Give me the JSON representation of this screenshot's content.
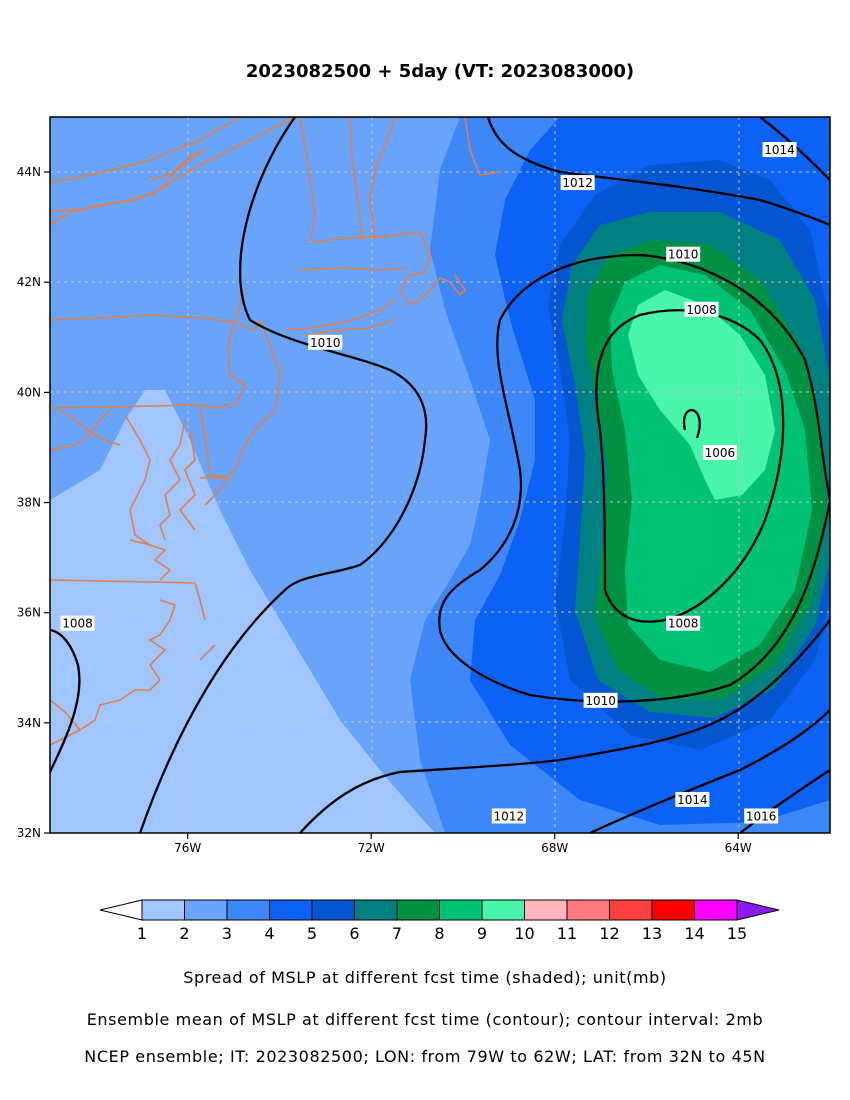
{
  "title": "2023082500 + 5day (VT: 2023083000)",
  "map": {
    "lon_range": [
      -79,
      -62
    ],
    "lat_range": [
      32,
      45
    ],
    "lon_ticks": [
      "76W",
      "72W",
      "68W",
      "64W"
    ],
    "lat_ticks": [
      "44N",
      "42N",
      "40N",
      "38N",
      "36N",
      "34N",
      "32N"
    ],
    "coast_color": "#e07f4a",
    "grid_color": "#c8c8c8"
  },
  "contour_labels": [
    {
      "text": "1012",
      "lon": -67.5,
      "lat": 43.8
    },
    {
      "text": "1014",
      "lon": -63.1,
      "lat": 44.4
    },
    {
      "text": "1010",
      "lon": -65.2,
      "lat": 42.5
    },
    {
      "text": "1008",
      "lon": -64.8,
      "lat": 41.5
    },
    {
      "text": "1006",
      "lon": -64.4,
      "lat": 38.9
    },
    {
      "text": "1010",
      "lon": -73.0,
      "lat": 40.9
    },
    {
      "text": "1008",
      "lon": -78.4,
      "lat": 35.8
    },
    {
      "text": "1008",
      "lon": -65.2,
      "lat": 35.8
    },
    {
      "text": "1010",
      "lon": -67.0,
      "lat": 34.4
    },
    {
      "text": "1012",
      "lon": -69.0,
      "lat": 32.3
    },
    {
      "text": "1014",
      "lon": -65.0,
      "lat": 32.6
    },
    {
      "text": "1016",
      "lon": -63.5,
      "lat": 32.3
    }
  ],
  "colorbar": {
    "labels": [
      "1",
      "2",
      "3",
      "4",
      "5",
      "6",
      "7",
      "8",
      "9",
      "10",
      "11",
      "12",
      "13",
      "14",
      "15"
    ],
    "colors": [
      "#a0c5ff",
      "#6aa3fa",
      "#3d87f8",
      "#0c62f4",
      "#0656d1",
      "#008080",
      "#009143",
      "#00c275",
      "#4af5aa",
      "#ffb5bc",
      "#ff797e",
      "#ff4040",
      "#ff0000",
      "#ff00ff",
      "#8c1bef"
    ],
    "lower_arrow_color": "#ffffff"
  },
  "captions": [
    "Spread of MSLP at different fcst time (shaded); unit(mb)",
    "Ensemble mean of MSLP at different fcst time (contour); contour interval: 2mb",
    "NCEP ensemble; IT: 2023082500; LON: from 79W to 62W; LAT: from 32N to 45N"
  ]
}
